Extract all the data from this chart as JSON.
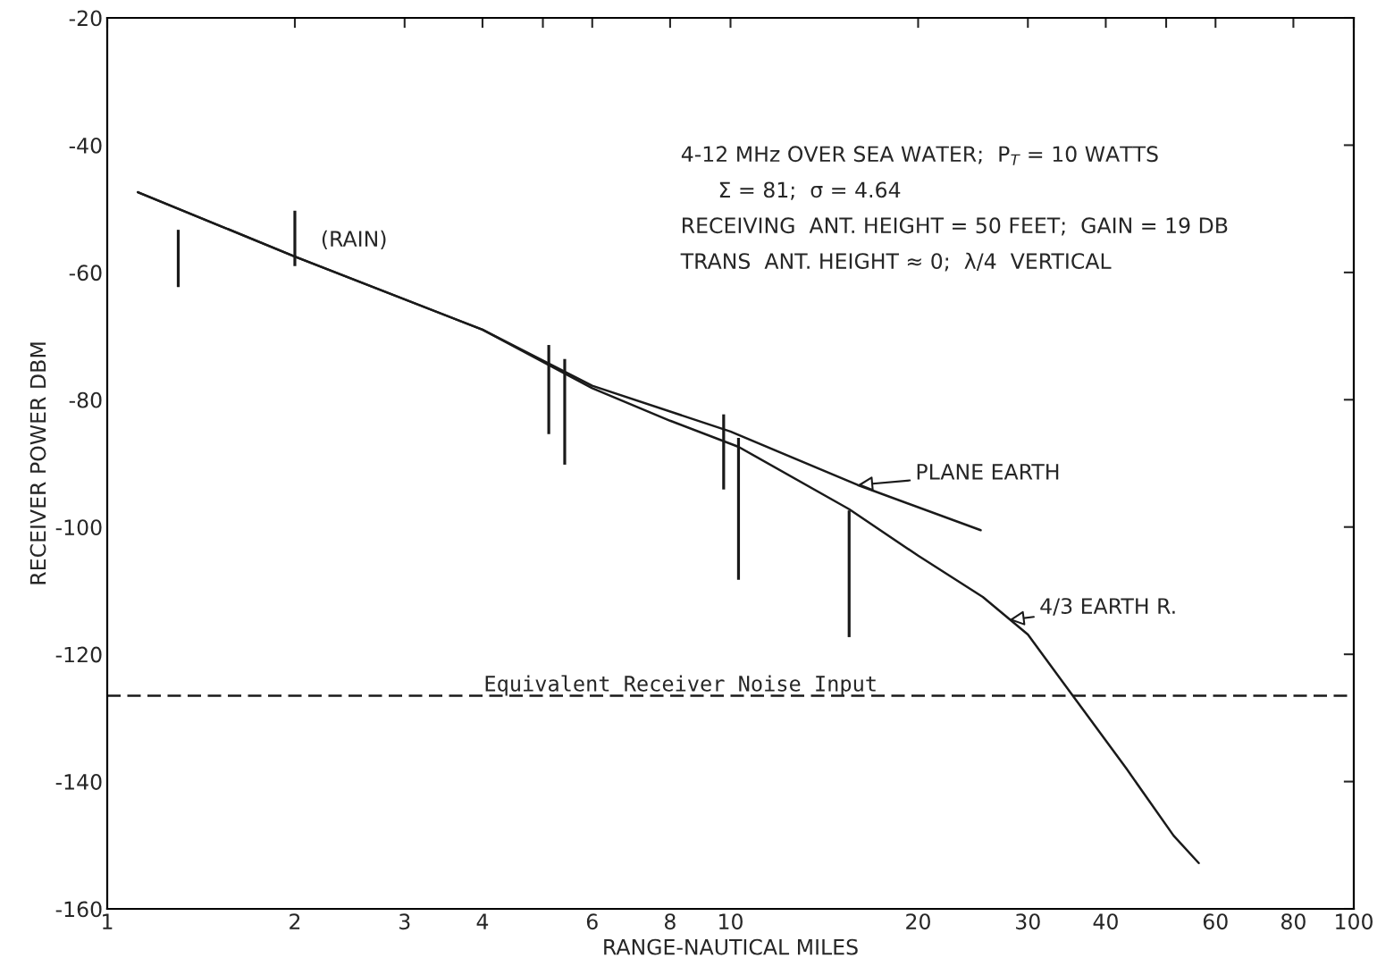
{
  "chart_data": {
    "type": "line",
    "xlabel": "RANGE-NAUTICAL MILES",
    "ylabel": "RECEIVER POWER DBM",
    "log": "x",
    "xlim": [
      1,
      100
    ],
    "ylim": [
      -160,
      -20
    ],
    "xticks": [
      1,
      2,
      3,
      4,
      {
        "value": 5,
        "label": null
      },
      6,
      8,
      10,
      20,
      30,
      40,
      {
        "value": 50,
        "label": null
      },
      60,
      80,
      100
    ],
    "yticks": [
      -160,
      -140,
      -120,
      -100,
      -80,
      -60,
      -40,
      -20
    ],
    "grid": false,
    "marker": "none",
    "line_style": "solid",
    "series": [
      {
        "color": "#1a1a1a",
        "x": [
          1.12,
          2,
          4,
          6,
          10,
          16,
          25.2
        ],
        "values": [
          -47.4,
          -57.5,
          -69.0,
          -77.8,
          -85.0,
          -93.4,
          -100.5
        ]
      },
      {
        "color": "#1a1a1a",
        "x": [
          1.12,
          2,
          4,
          6,
          8,
          10.3,
          15.5,
          20,
          25.4,
          30,
          36.4,
          43.2,
          51.4,
          56.4
        ],
        "values": [
          -47.4,
          -57.5,
          -69.0,
          -78.2,
          -83.3,
          -87.4,
          -97.2,
          -104.5,
          -111.0,
          -116.9,
          -128.1,
          -138.0,
          -148.5,
          -152.8
        ]
      },
      {
        "type": "bar",
        "color": "#1a1a1a",
        "x": [
          1.3,
          2.0,
          5.11,
          5.42,
          9.75,
          10.3,
          15.5
        ],
        "base": [
          -62.3,
          -59.0,
          -85.4,
          -90.2,
          -94.1,
          -108.3,
          -117.3
        ],
        "values": [
          9.0,
          8.7,
          14.0,
          16.6,
          11.8,
          22.3,
          19.9
        ]
      }
    ],
    "ref_lines": [
      {
        "axis": "y",
        "value": -126.5,
        "label": "Equivalent Receiver Noise Input",
        "line_style": "dashed",
        "color": "#1a1a1a"
      }
    ],
    "annotations": [
      {
        "text": "(RAIN)",
        "x": 2.0,
        "y": -55
      },
      {
        "text": "PLANE EARTH",
        "x": 16,
        "y": -93.4
      },
      {
        "text": "4/3 EARTH R.",
        "x": 28,
        "y": -114.6
      },
      "4-12 MHz OVER SEA WATER;  P$_{T}$ = 10 WATTS",
      "Σ = 81;  σ = 4.64",
      "RECEIVING  ANT. HEIGHT = 50 FEET;  GAIN = 19 DB",
      "TRANS  ANT. HEIGHT ≈ 0;  λ/4  VERTICAL"
    ]
  }
}
